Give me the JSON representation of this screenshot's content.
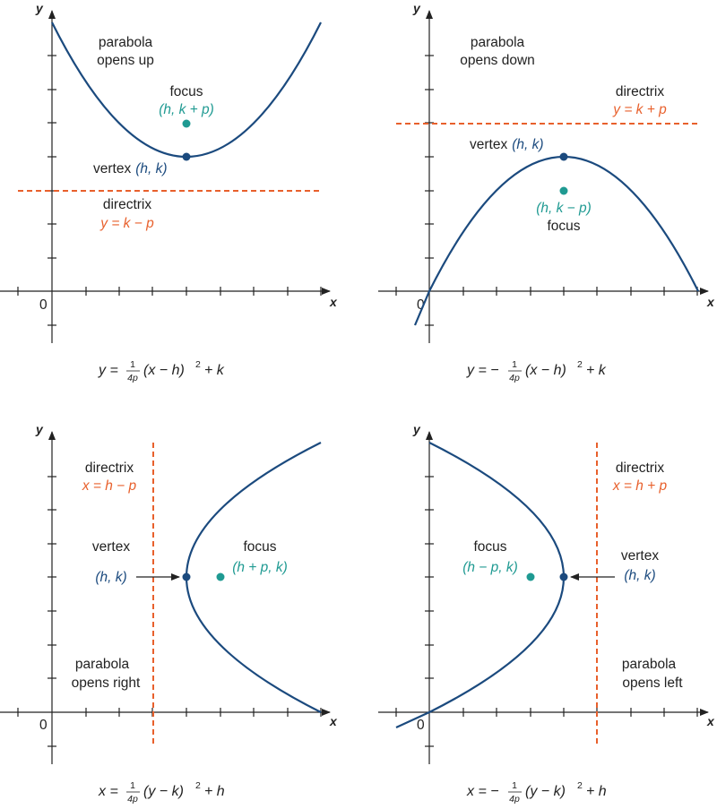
{
  "axis_labels": {
    "x": "x",
    "y": "y",
    "origin": "0"
  },
  "panel_up": {
    "title_line1": "parabola",
    "title_line2": "opens up",
    "focus_label": "focus",
    "focus_coord": "(h, k + p)",
    "vertex_label": "vertex",
    "vertex_coord": "(h, k)",
    "directrix_label": "directrix",
    "directrix_eq": "y = k − p",
    "equation_lhs": "y =",
    "equation_num": "1",
    "equation_den": "4p",
    "equation_rhs": "(x − h)",
    "equation_exp": "2",
    "equation_tail": "+ k"
  },
  "panel_down": {
    "title_line1": "parabola",
    "title_line2": "opens down",
    "focus_label": "focus",
    "focus_coord": "(h, k − p)",
    "vertex_label": "vertex",
    "vertex_coord": "(h, k)",
    "directrix_label": "directrix",
    "directrix_eq": "y = k + p",
    "equation_lhs": "y = −",
    "equation_num": "1",
    "equation_den": "4p",
    "equation_rhs": "(x − h)",
    "equation_exp": "2",
    "equation_tail": "+ k"
  },
  "panel_right": {
    "title_line1": "parabola",
    "title_line2": "opens right",
    "focus_label": "focus",
    "focus_coord": "(h + p, k)",
    "vertex_label": "vertex",
    "vertex_coord": "(h, k)",
    "directrix_label": "directrix",
    "directrix_eq": "x = h − p",
    "equation_lhs": "x =",
    "equation_num": "1",
    "equation_den": "4p",
    "equation_rhs": "(y − k)",
    "equation_exp": "2",
    "equation_tail": "+ h"
  },
  "panel_left": {
    "title_line1": "parabola",
    "title_line2": "opens left",
    "focus_label": "focus",
    "focus_coord": "(h − p, k)",
    "vertex_label": "vertex",
    "vertex_coord": "(h, k)",
    "directrix_label": "directrix",
    "directrix_eq": "x = h + p",
    "equation_lhs": "x = −",
    "equation_num": "1",
    "equation_den": "4p",
    "equation_rhs": "(y − k)",
    "equation_exp": "2",
    "equation_tail": "+ h"
  },
  "colors": {
    "curve": "#1b4a7e",
    "focus": "#1f9a92",
    "directrix": "#e8602c",
    "axis": "#222222"
  }
}
